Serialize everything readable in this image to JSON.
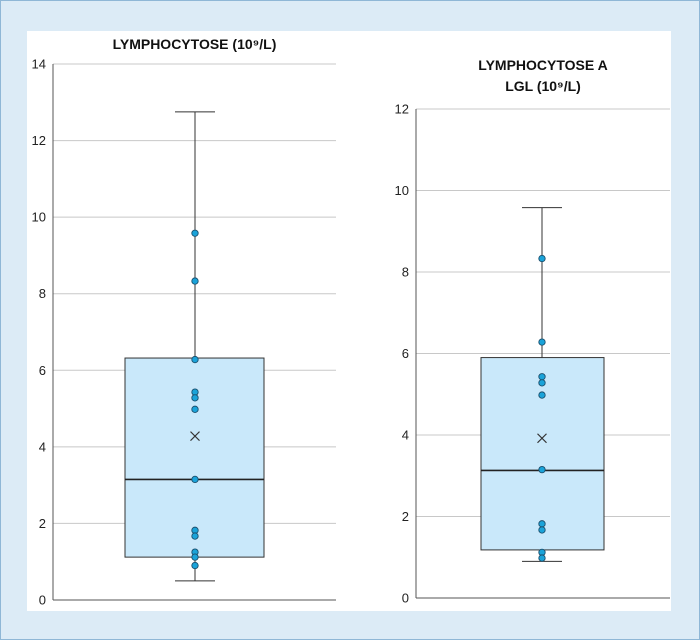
{
  "chart_data": [
    {
      "type": "box",
      "title_lines": [
        "LYMPHOCYTOSE (10⁹/L)"
      ],
      "ylim": [
        0,
        14
      ],
      "yticks": [
        0,
        2,
        4,
        6,
        8,
        10,
        12,
        14
      ],
      "grid": true,
      "box": {
        "min": 0.5,
        "q1": 1.12,
        "median": 3.15,
        "q3": 6.32,
        "max": 12.75,
        "mean": 4.28
      },
      "points": [
        9.58,
        8.33,
        6.28,
        5.43,
        5.28,
        4.98,
        3.15,
        1.82,
        1.67,
        1.25,
        1.12,
        0.9
      ],
      "colors": {
        "box_fill": "#c9e8fa",
        "point_fill": "#1aa3d9",
        "grid": "#c8c8c8"
      }
    },
    {
      "type": "box",
      "title_lines": [
        "LYMPHOCYTOSE A",
        "LGL (10⁹/L)"
      ],
      "ylim": [
        0,
        12
      ],
      "yticks": [
        0,
        2,
        4,
        6,
        8,
        10,
        12
      ],
      "grid": true,
      "box": {
        "min": 0.9,
        "q1": 1.18,
        "median": 3.13,
        "q3": 5.9,
        "max": 9.58,
        "mean": 3.92
      },
      "points": [
        8.33,
        6.28,
        5.43,
        5.28,
        4.98,
        3.15,
        1.82,
        1.67,
        1.12,
        0.98
      ],
      "colors": {
        "box_fill": "#c9e8fa",
        "point_fill": "#1aa3d9",
        "grid": "#c8c8c8"
      }
    }
  ]
}
